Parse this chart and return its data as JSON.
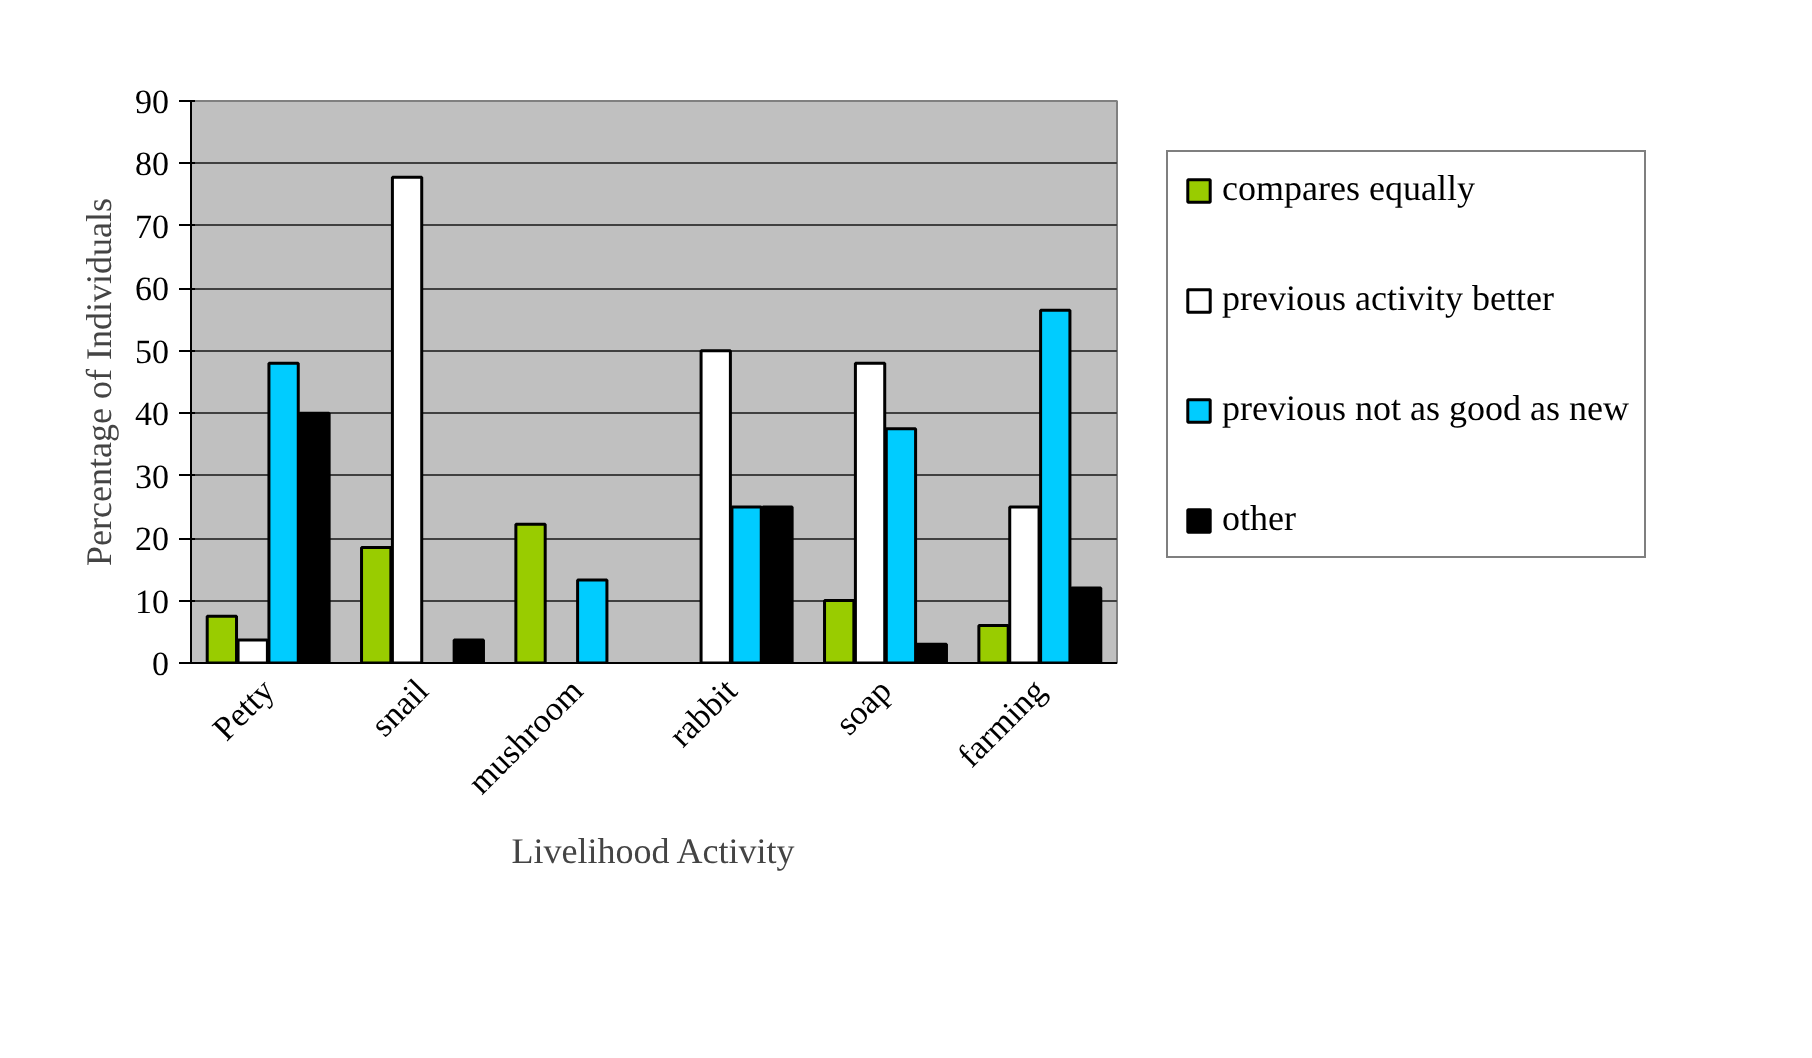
{
  "chart_data": {
    "type": "bar",
    "xlabel": "Livelihood Activity",
    "ylabel": "Percentage of Individuals",
    "categories": [
      "Petty",
      "snail",
      "mushroom",
      "rabbit",
      "soap",
      "farming"
    ],
    "series": [
      {
        "name": "compares equally",
        "color": "#99cc00",
        "values": [
          7.5,
          18.5,
          22.2,
          0,
          10,
          6
        ]
      },
      {
        "name": "previous activity better",
        "color": "#ffffff",
        "values": [
          3.7,
          77.8,
          0,
          50,
          48,
          25
        ]
      },
      {
        "name": "previous not as good as new",
        "color": "#00ccff",
        "values": [
          48,
          0,
          13.3,
          25,
          37.5,
          56.5
        ]
      },
      {
        "name": "other",
        "color": "#000000",
        "values": [
          40,
          3.7,
          0,
          25,
          3,
          12
        ]
      }
    ],
    "ylim": [
      0,
      90
    ],
    "yticks": [
      0,
      10,
      20,
      30,
      40,
      50,
      60,
      70,
      80,
      90
    ],
    "grid": "y",
    "legend": "right"
  }
}
